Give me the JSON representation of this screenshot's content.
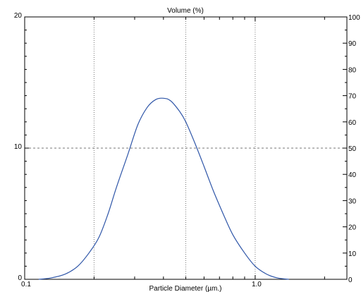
{
  "chart_data": {
    "type": "line",
    "title": "Volume (%)",
    "xlabel": "Particle Diameter (µm.)",
    "x_scale": "log",
    "xlim": [
      0.1,
      2.5
    ],
    "ylim": [
      0,
      20
    ],
    "y2lim": [
      0,
      100
    ],
    "grid": true,
    "x_tick_labels": [
      {
        "value": 0.1,
        "label": "0.1"
      },
      {
        "value": 1.0,
        "label": "1.0"
      }
    ],
    "x_dotted_gridlines": [
      0.2,
      0.5,
      1.0
    ],
    "y_tick_labels": [
      "0",
      "10",
      "20"
    ],
    "y_dashed_gridlines": [
      10
    ],
    "y2_tick_labels": [
      "0",
      "10",
      "20",
      "30",
      "40",
      "50",
      "60",
      "70",
      "80",
      "90",
      "100"
    ],
    "series": [
      {
        "color": "#2f56a8",
        "points": [
          [
            0.115,
            0
          ],
          [
            0.13,
            0.1
          ],
          [
            0.15,
            0.4
          ],
          [
            0.17,
            1.0
          ],
          [
            0.19,
            2.0
          ],
          [
            0.21,
            3.2
          ],
          [
            0.23,
            5.0
          ],
          [
            0.25,
            7.0
          ],
          [
            0.28,
            9.5
          ],
          [
            0.31,
            11.8
          ],
          [
            0.34,
            13.1
          ],
          [
            0.37,
            13.7
          ],
          [
            0.4,
            13.8
          ],
          [
            0.43,
            13.6
          ],
          [
            0.47,
            12.8
          ],
          [
            0.5,
            12.0
          ],
          [
            0.55,
            10.3
          ],
          [
            0.6,
            8.6
          ],
          [
            0.66,
            6.7
          ],
          [
            0.73,
            4.9
          ],
          [
            0.8,
            3.4
          ],
          [
            0.9,
            2.0
          ],
          [
            1.0,
            1.0
          ],
          [
            1.12,
            0.4
          ],
          [
            1.25,
            0.1
          ],
          [
            1.4,
            0
          ]
        ]
      }
    ]
  }
}
